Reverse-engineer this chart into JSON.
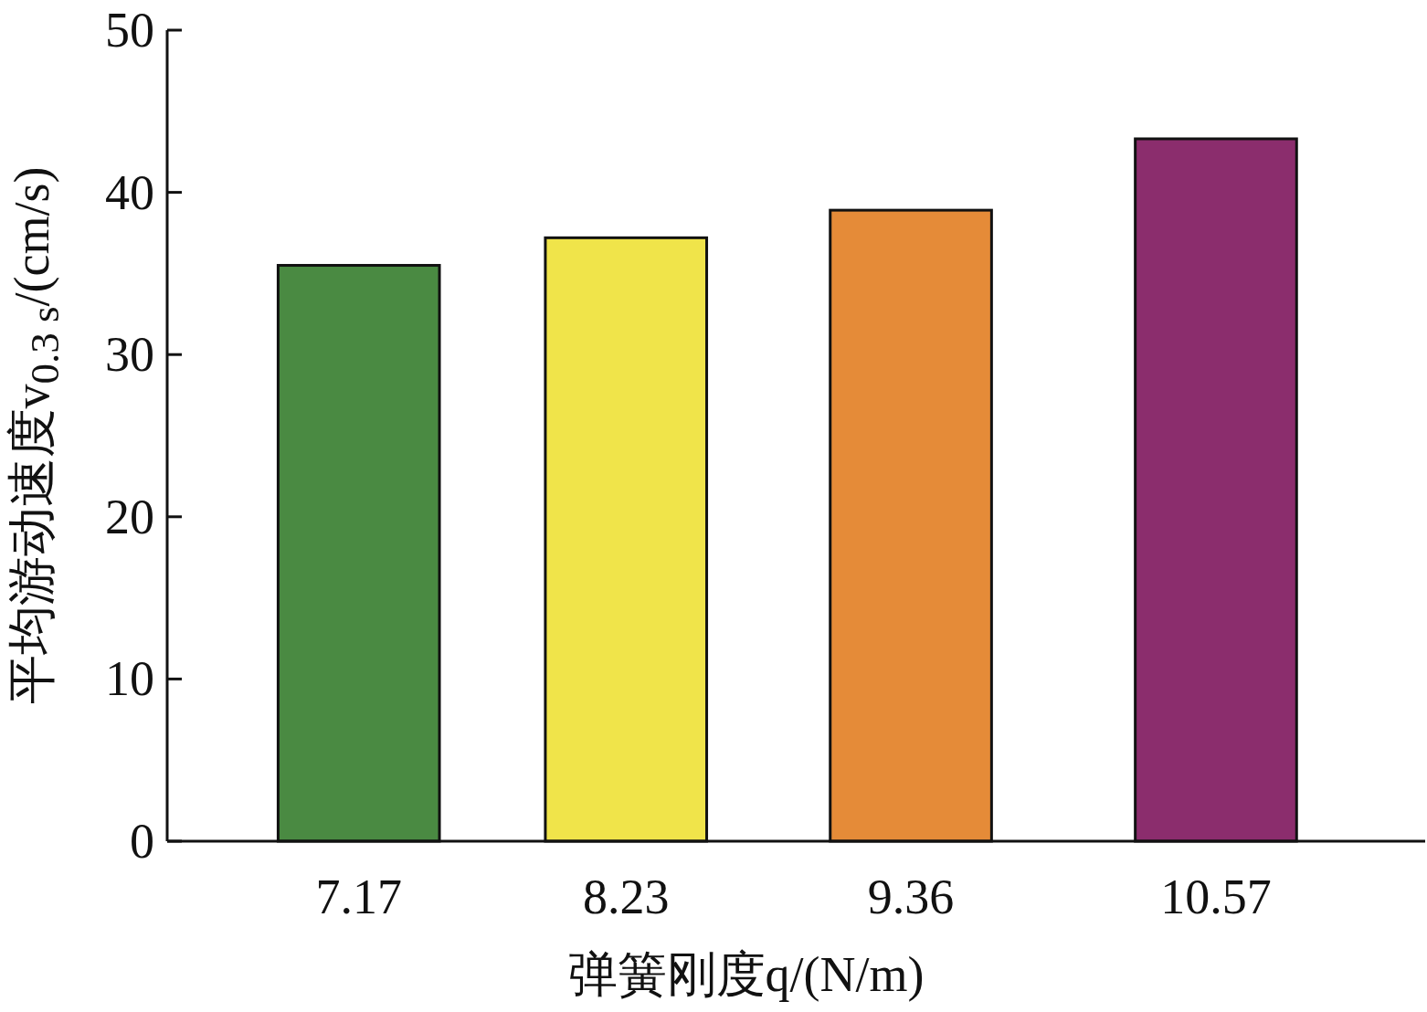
{
  "chart_data": {
    "type": "bar",
    "xlabel": "弹簧刚度q/(N/m)",
    "ylabel": "平均游动速度v$_{0.3 s}$/(cm/s)",
    "x": [
      7.17,
      8.23,
      9.36,
      10.57
    ],
    "values": [
      35.5,
      37.2,
      38.9,
      43.3
    ],
    "colors": [
      "#4a8a42",
      "#f0e44a",
      "#e58b38",
      "#8b2d6d"
    ],
    "xlim": [
      6.41,
      11.4
    ],
    "xticks": [
      7.17,
      8.23,
      9.36,
      10.57
    ],
    "ylim": [
      0,
      50
    ],
    "yticks": [
      0,
      10,
      20,
      30,
      40,
      50
    ]
  }
}
